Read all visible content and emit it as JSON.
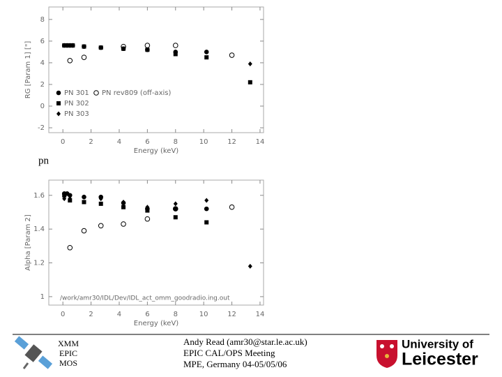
{
  "chart_data": [
    {
      "type": "scatter",
      "xlabel": "Energy (keV)",
      "ylabel": "RG [Param 1] [\"]",
      "xlim": [
        -1.0,
        14.25
      ],
      "ylim": [
        -2.45,
        9.15
      ],
      "xticks": [
        0,
        2,
        4,
        6,
        8,
        10,
        12,
        14
      ],
      "yticks": [
        -2,
        0,
        2,
        4,
        6,
        8
      ],
      "series": [
        {
          "name": "PN 301",
          "marker": "circle",
          "color": "#000000",
          "x": [
            0.1,
            0.3,
            0.5,
            0.7,
            1.5,
            2.7,
            4.3,
            6.0,
            8.0,
            10.2
          ],
          "values": [
            5.6,
            5.6,
            5.6,
            5.6,
            5.5,
            5.4,
            5.3,
            5.2,
            5.0,
            5.0
          ]
        },
        {
          "name": "PN rev809 (off-axis)",
          "marker": "open-circle",
          "color": "#000000",
          "x": [
            0.5,
            1.5,
            4.3,
            6.0,
            8.0,
            12.0
          ],
          "values": [
            4.2,
            4.5,
            5.5,
            5.6,
            5.6,
            4.7
          ]
        },
        {
          "name": "PN 302",
          "marker": "square",
          "color": "#000000",
          "x": [
            0.1,
            0.3,
            0.5,
            0.7,
            1.5,
            2.7,
            4.3,
            6.0,
            8.0,
            10.2,
            13.3
          ],
          "values": [
            5.6,
            5.6,
            5.6,
            5.6,
            5.5,
            5.4,
            5.3,
            5.2,
            4.8,
            4.5,
            2.2
          ]
        },
        {
          "name": "PN 303",
          "marker": "diamond",
          "color": "#000000",
          "x": [
            8.0,
            13.3
          ],
          "values": [
            5.0,
            3.9
          ]
        }
      ]
    },
    {
      "type": "scatter",
      "xlabel": "Energy (keV)",
      "ylabel": "Alpha [Param 2]",
      "note": "/work/amr30/IDL/Dev/IDL_act_omm_goodradio.ing.out",
      "xlim": [
        -1.0,
        14.25
      ],
      "ylim": [
        0.95,
        1.69
      ],
      "xticks": [
        0,
        2,
        4,
        6,
        8,
        10,
        12,
        14
      ],
      "yticks": [
        1.0,
        1.2,
        1.4,
        1.6
      ],
      "series": [
        {
          "marker": "circle",
          "color": "#000000",
          "x": [
            0.1,
            0.3,
            0.5,
            1.5,
            2.7,
            4.3,
            6.0,
            8.0,
            10.2
          ],
          "values": [
            1.61,
            1.61,
            1.6,
            1.59,
            1.59,
            1.555,
            1.52,
            1.52,
            1.52
          ]
        },
        {
          "marker": "square",
          "color": "#000000",
          "x": [
            0.1,
            0.5,
            1.5,
            2.7,
            4.3,
            6.0,
            8.0,
            10.2
          ],
          "values": [
            1.6,
            1.57,
            1.56,
            1.55,
            1.53,
            1.51,
            1.47,
            1.44
          ]
        },
        {
          "marker": "diamond",
          "color": "#000000",
          "x": [
            0.1,
            0.5,
            1.5,
            2.7,
            4.3,
            6.0,
            8.0,
            10.2,
            13.3
          ],
          "values": [
            1.58,
            1.58,
            1.59,
            1.58,
            1.56,
            1.53,
            1.55,
            1.57,
            1.18
          ]
        },
        {
          "marker": "open-circle",
          "color": "#000000",
          "x": [
            0.5,
            1.5,
            2.7,
            4.3,
            6.0,
            8.0,
            12.0
          ],
          "values": [
            1.29,
            1.39,
            1.42,
            1.43,
            1.46,
            1.52,
            1.53
          ]
        }
      ]
    }
  ],
  "caption": "pn",
  "footer": {
    "mission": "XMM",
    "instrument": "EPIC",
    "camera": "MOS",
    "author": "Andy Read (amr30@star.le.ac.uk)",
    "meeting": "EPIC CAL/OPS Meeting",
    "place": "MPE, Germany 04-05/05/06",
    "logo_top": "University of",
    "logo_bottom": "Leicester"
  }
}
